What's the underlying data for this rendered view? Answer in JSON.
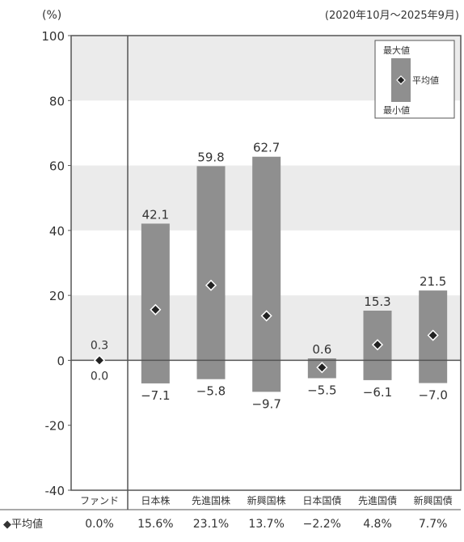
{
  "chart_data": {
    "type": "bar",
    "subtype": "range-bar-with-mean-marker",
    "unit_label": "(%)",
    "period": "(2020年10月〜2025年9月)",
    "ylim": [
      -40,
      100
    ],
    "yticks": [
      -40,
      -20,
      0,
      20,
      40,
      60,
      80,
      100
    ],
    "grid": "alternating horizontal bands",
    "categories": [
      "ファンド",
      "日本株",
      "先進国株",
      "新興国株",
      "日本国債",
      "先進国債",
      "新興国債"
    ],
    "max": [
      0.3,
      42.1,
      59.8,
      62.7,
      0.6,
      15.3,
      21.5
    ],
    "min": [
      0.0,
      -7.1,
      -5.8,
      -9.7,
      -5.5,
      -6.1,
      -7.0
    ],
    "mean": [
      0.0,
      15.6,
      23.1,
      13.7,
      -2.2,
      4.8,
      7.7
    ],
    "max_labels": [
      "0.3",
      "42.1",
      "59.8",
      "62.7",
      "0.6",
      "15.3",
      "21.5"
    ],
    "min_labels": [
      "0.0",
      "−7.1",
      "−5.8",
      "−9.7",
      "−5.5",
      "−6.1",
      "−7.0"
    ],
    "mean_labels": [
      "0.0%",
      "15.6%",
      "23.1%",
      "13.7%",
      "−2.2%",
      "4.8%",
      "7.7%"
    ],
    "mean_row_label": "◆平均値",
    "legend": {
      "max": "最大値",
      "mean": "平均値",
      "min": "最小値",
      "position": "top-right"
    },
    "colors": {
      "bar": "#8f8f8f",
      "band": "#ebebeb",
      "axis": "#555555",
      "marker": "#222222",
      "text": "#333333"
    }
  }
}
